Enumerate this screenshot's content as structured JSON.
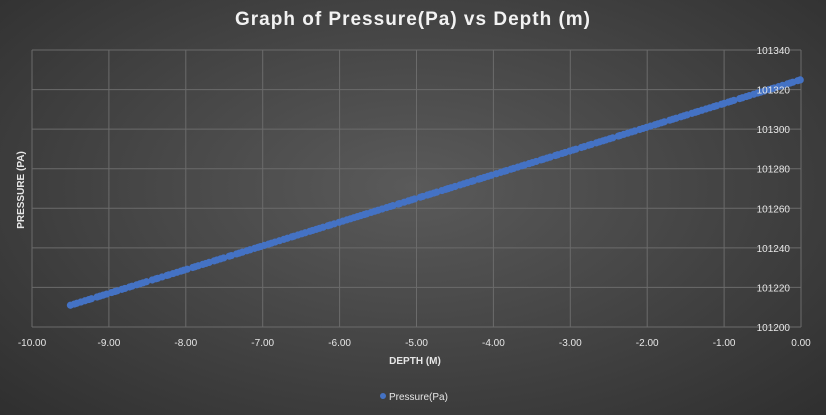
{
  "chart_data": {
    "type": "scatter",
    "title": "Graph of Pressure(Pa) vs Depth (m)",
    "xlabel": "DEPTH (M)",
    "ylabel": "PRESSURE (PA)",
    "xlim": [
      -10,
      0
    ],
    "ylim": [
      101200,
      101340
    ],
    "x_ticks": [
      "-10.00",
      "-9.00",
      "-8.00",
      "-7.00",
      "-6.00",
      "-5.00",
      "-4.00",
      "-3.00",
      "-2.00",
      "-1.00",
      "0.00"
    ],
    "y_ticks": [
      "101200",
      "101220",
      "101240",
      "101260",
      "101280",
      "101300",
      "101320",
      "101340"
    ],
    "y_axis_position": "right",
    "grid": true,
    "legend_position": "bottom",
    "series": [
      {
        "name": "Pressure(Pa)",
        "color": "#4472C4",
        "x_range": [
          -9.5,
          0
        ],
        "y_range": [
          101211,
          101325
        ],
        "point_count": 200
      }
    ]
  }
}
